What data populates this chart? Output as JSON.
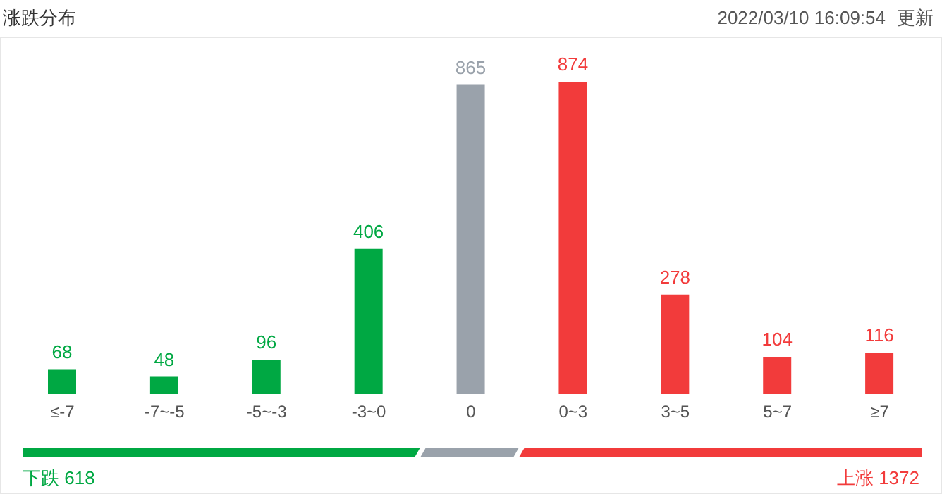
{
  "chart_data": {
    "type": "bar",
    "title": "涨跌分布",
    "categories": [
      "≤-7",
      "-7~-5",
      "-5~-3",
      "-3~0",
      "0",
      "0~3",
      "3~5",
      "5~7",
      "≥7"
    ],
    "values": [
      68,
      48,
      96,
      406,
      865,
      874,
      278,
      104,
      116
    ],
    "colors": [
      "#00a843",
      "#00a843",
      "#00a843",
      "#00a843",
      "#9aa2ab",
      "#f23b3b",
      "#f23b3b",
      "#f23b3b",
      "#f23b3b"
    ],
    "data_labels": true,
    "tick_labels": "x",
    "annotations": [
      "2022/03/10 16:09:54",
      "更新",
      "下跌 618",
      "上涨 1372"
    ]
  }
}
